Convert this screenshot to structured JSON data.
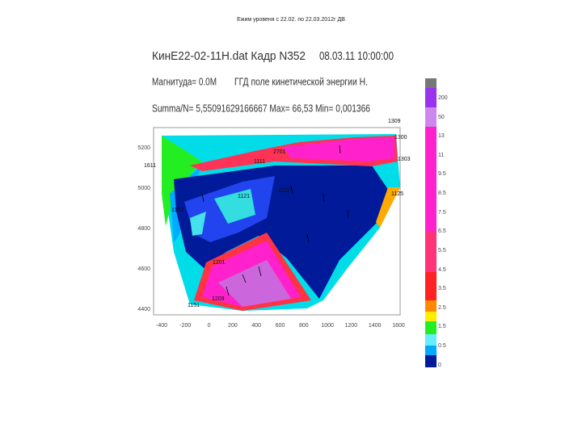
{
  "slide_title": "Ежим уровеня с 22.02. по 22.03.2012г ДВ",
  "figure": {
    "header": {
      "file": "КинЕ22-02-11Н.dat Кадр N352",
      "datetime": "08.03.11 10:00:00",
      "magnitude": "Магнитуда= 0.0М",
      "field": "ГГД поле кинетической энергии Н.",
      "stats": "Summa/N= 5,55091629166667 Max= 66,53 Min= 0,001366"
    },
    "y_axis_ticks": [
      "5200",
      "5000",
      "4800",
      "4600",
      "4400"
    ],
    "x_axis_ticks": [
      "-400",
      "-200",
      "0",
      "200",
      "400",
      "600",
      "800",
      "1000",
      "1200",
      "1400",
      "1600"
    ],
    "colorbar_labels": [
      "200",
      "50",
      "13",
      "11",
      "9.5",
      "8.5",
      "7.5",
      "6.5",
      "5.5",
      "4.5",
      "3.5",
      "2.5",
      "1.5",
      "0.5",
      "0"
    ],
    "station_labels": [
      "1309",
      "1300",
      "1303",
      "1611",
      "2701",
      "1111",
      "1121",
      "1102",
      "1125",
      "1162",
      "1201",
      "1151",
      "1209"
    ]
  }
}
